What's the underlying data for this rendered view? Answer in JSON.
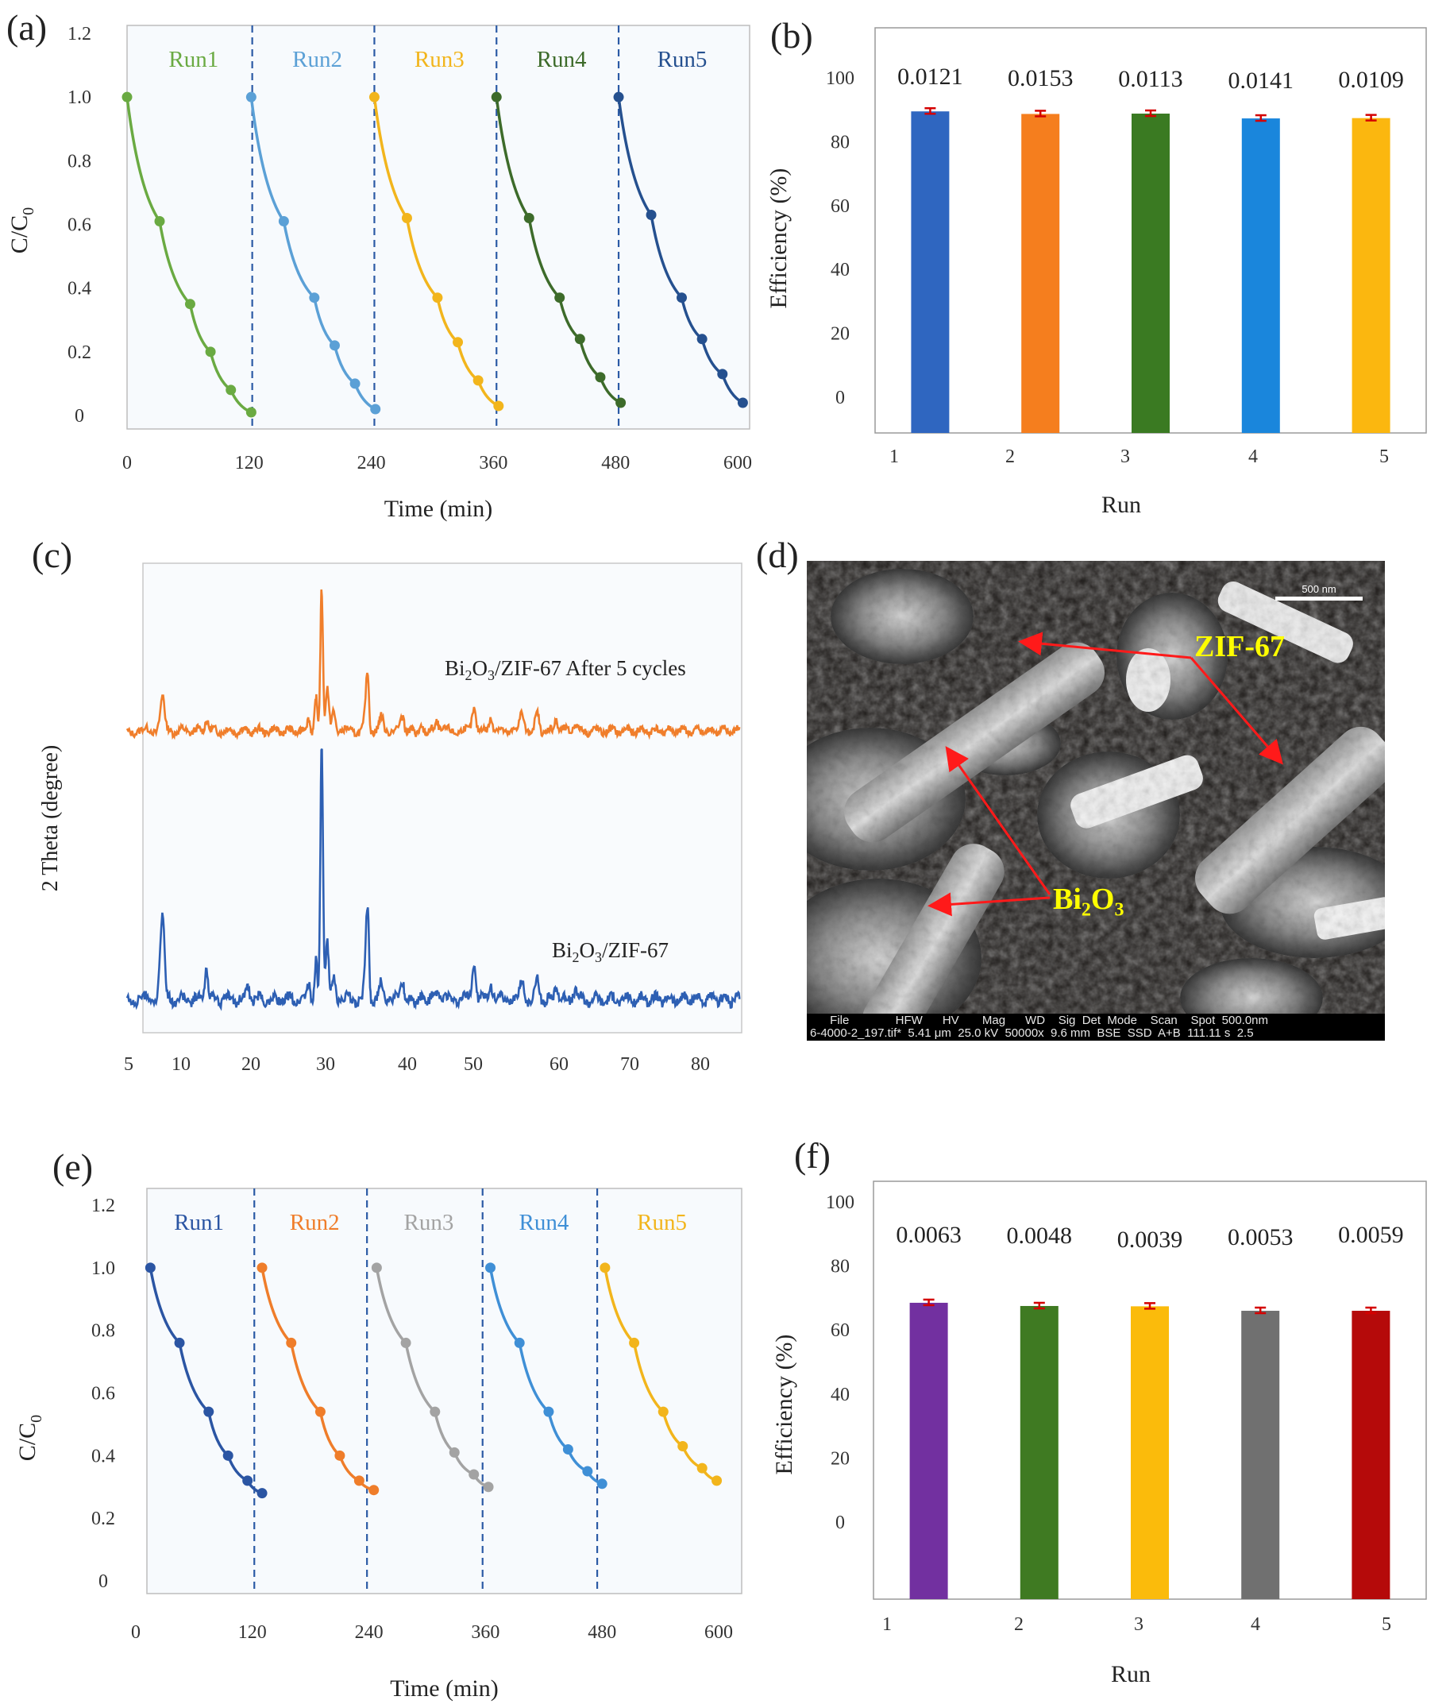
{
  "panels": {
    "a": "(a)",
    "b": "(b)",
    "c": "(c)",
    "d": "(d)",
    "e": "(e)",
    "f": "(f)"
  },
  "sem": {
    "label_zif": "ZIF-67",
    "label_bi_prefix": "Bi",
    "label_bi_sub1": "2",
    "label_bi_mid": "O",
    "label_bi_sub2": "3",
    "scale_label": "500 nm",
    "footer_headers": "       File              HFW      HV       Mag      WD    Sig  Det  Mode    Scan    Spot  500.0nm",
    "footer_values": "6-4000-2_197.tif*  5.41 μm  25.0 kV  50000x  9.6 mm  BSE  SSD  A+B  111.11 s  2.5"
  },
  "chart_data": [
    {
      "id": "a",
      "type": "line",
      "xlabel": "Time (min)",
      "ylabel_main": "C/C",
      "ylabel_sub": "0",
      "xticks": [
        0,
        120,
        240,
        360,
        480,
        600
      ],
      "yticks": [
        0,
        0.2,
        0.4,
        0.6,
        0.8,
        1.0,
        1.2
      ],
      "ytick_labels": [
        "0",
        "0.2",
        "0.4",
        "0.6",
        "0.8",
        "1.0",
        "1.2"
      ],
      "xlim": [
        0,
        600
      ],
      "ylim": [
        0,
        1.2
      ],
      "dividers": [
        123,
        243,
        363,
        483
      ],
      "series": [
        {
          "name": "Run1",
          "color": "#6aaa42",
          "x": [
            0,
            32,
            62,
            82,
            102,
            122
          ],
          "y": [
            1.0,
            0.61,
            0.35,
            0.2,
            0.08,
            0.01
          ]
        },
        {
          "name": "Run2",
          "color": "#5ba0d6",
          "x": [
            122,
            154,
            184,
            204,
            224,
            244
          ],
          "y": [
            1.0,
            0.61,
            0.37,
            0.22,
            0.1,
            0.02
          ]
        },
        {
          "name": "Run3",
          "color": "#f2b51c",
          "x": [
            243,
            275,
            305,
            325,
            345,
            365
          ],
          "y": [
            1.0,
            0.62,
            0.37,
            0.23,
            0.11,
            0.03
          ]
        },
        {
          "name": "Run4",
          "color": "#3d6b2a",
          "x": [
            363,
            395,
            425,
            445,
            465,
            485
          ],
          "y": [
            1.0,
            0.62,
            0.37,
            0.24,
            0.12,
            0.04
          ]
        },
        {
          "name": "Run5",
          "color": "#25508f",
          "x": [
            483,
            515,
            545,
            565,
            585,
            605
          ],
          "y": [
            1.0,
            0.63,
            0.37,
            0.24,
            0.13,
            0.04
          ]
        }
      ]
    },
    {
      "id": "b",
      "type": "bar",
      "xlabel": "Run",
      "ylabel": "Efficiency (%)",
      "categories": [
        "1",
        "2",
        "3",
        "4",
        "5"
      ],
      "values": [
        89.5,
        88.7,
        88.8,
        87.3,
        87.4
      ],
      "data_labels": [
        "0.0121",
        "0.0153",
        "0.0113",
        "0.0141",
        "0.0109"
      ],
      "colors": [
        "#2f66c0",
        "#f57e1e",
        "#3a7a22",
        "#1a86dc",
        "#fbb70f"
      ],
      "yticks": [
        0,
        20,
        40,
        60,
        80,
        100
      ],
      "ylim": [
        -11,
        110
      ]
    },
    {
      "id": "c",
      "type": "line",
      "xlabel": "2 Theta (degree)",
      "ylabel": "2 Theta (degree)",
      "xticks": [
        5,
        10,
        20,
        30,
        40,
        50,
        60,
        70,
        80
      ],
      "xlim": [
        5,
        86
      ],
      "series": [
        {
          "name": "Bi2O3/ZIF-67 After 5 cycles",
          "label_main": "Bi",
          "label_sub1": "2",
          "label_mid": "O",
          "label_sub2": "3",
          "label_rest": "/ZIF-67 After 5 cycles",
          "color": "#f07e2b",
          "baseline": 0.5,
          "peaks": [
            [
              8.1,
              0.25
            ],
            [
              13.8,
              0.09
            ],
            [
              27.5,
              0.09
            ],
            [
              28.7,
              0.22
            ],
            [
              29.7,
              1.0
            ],
            [
              30.6,
              0.3
            ],
            [
              31.5,
              0.14
            ],
            [
              35.2,
              0.4
            ],
            [
              37.5,
              0.12
            ],
            [
              39.6,
              0.11
            ],
            [
              46,
              0.08
            ],
            [
              50.1,
              0.17
            ],
            [
              52.2,
              0.1
            ],
            [
              55.8,
              0.13
            ],
            [
              57.3,
              0.11
            ],
            [
              60.2,
              0.09
            ],
            [
              62.6,
              0.06
            ]
          ]
        },
        {
          "name": "Bi2O3/ZIF-67",
          "label_main": "Bi",
          "label_sub1": "2",
          "label_mid": "O",
          "label_sub2": "3",
          "label_rest": "/ZIF-67",
          "color": "#2d5fb3",
          "baseline": 0.0,
          "peaks": [
            [
              8.1,
              0.45
            ],
            [
              13.8,
              0.17
            ],
            [
              19.3,
              0.07
            ],
            [
              27.5,
              0.09
            ],
            [
              28.7,
              0.2
            ],
            [
              29.7,
              1.35
            ],
            [
              30.6,
              0.3
            ],
            [
              31.5,
              0.12
            ],
            [
              35.2,
              0.48
            ],
            [
              37.5,
              0.1
            ],
            [
              39.6,
              0.08
            ],
            [
              46,
              0.06
            ],
            [
              50.1,
              0.2
            ],
            [
              52.2,
              0.08
            ],
            [
              55.8,
              0.1
            ],
            [
              57.3,
              0.09
            ],
            [
              60.2,
              0.08
            ],
            [
              62.6,
              0.06
            ]
          ]
        }
      ]
    },
    {
      "id": "e",
      "type": "line",
      "xlabel": "Time (min)",
      "ylabel_main": "C/C",
      "ylabel_sub": "0",
      "xticks": [
        0,
        120,
        240,
        360,
        480,
        600
      ],
      "yticks": [
        0,
        0.2,
        0.4,
        0.6,
        0.8,
        1.0,
        1.2
      ],
      "ytick_labels": [
        "0",
        "0.2",
        "0.4",
        "0.6",
        "0.8",
        "1.0",
        "1.2"
      ],
      "xlim": [
        0,
        600
      ],
      "ylim": [
        0,
        1.2
      ],
      "dividers": [
        122,
        238,
        357,
        475
      ],
      "series": [
        {
          "name": "Run1",
          "color": "#2b55a3",
          "x": [
            15,
            45,
            75,
            95,
            115,
            130
          ],
          "y": [
            1.0,
            0.76,
            0.54,
            0.4,
            0.32,
            0.28
          ]
        },
        {
          "name": "Run2",
          "color": "#ef7d2a",
          "x": [
            130,
            160,
            190,
            210,
            230,
            245
          ],
          "y": [
            1.0,
            0.76,
            0.54,
            0.4,
            0.32,
            0.29
          ]
        },
        {
          "name": "Run3",
          "color": "#a3a3a3",
          "x": [
            248,
            278,
            308,
            328,
            348,
            363
          ],
          "y": [
            1.0,
            0.76,
            0.54,
            0.41,
            0.34,
            0.3
          ]
        },
        {
          "name": "Run4",
          "color": "#3f8fd6",
          "x": [
            365,
            395,
            425,
            445,
            465,
            480
          ],
          "y": [
            1.0,
            0.76,
            0.54,
            0.42,
            0.35,
            0.31
          ]
        },
        {
          "name": "Run5",
          "color": "#f2b51c",
          "x": [
            483,
            513,
            543,
            563,
            583,
            598
          ],
          "y": [
            1.0,
            0.76,
            0.54,
            0.43,
            0.36,
            0.32
          ]
        }
      ]
    },
    {
      "id": "f",
      "type": "bar",
      "xlabel": "Run",
      "ylabel": "Efficiency (%)",
      "categories": [
        "1",
        "2",
        "3",
        "4",
        "5"
      ],
      "values": [
        68.5,
        67.5,
        67.4,
        66,
        66
      ],
      "data_labels": [
        "0.0063",
        "0.0048",
        "0.0039",
        "0.0053",
        "0.0059"
      ],
      "colors": [
        "#7230a0",
        "#3f7a22",
        "#fbbb0b",
        "#707070",
        "#b50a0a"
      ],
      "yticks": [
        0,
        20,
        40,
        60,
        80,
        100
      ],
      "ylim": [
        -24,
        104
      ]
    }
  ]
}
